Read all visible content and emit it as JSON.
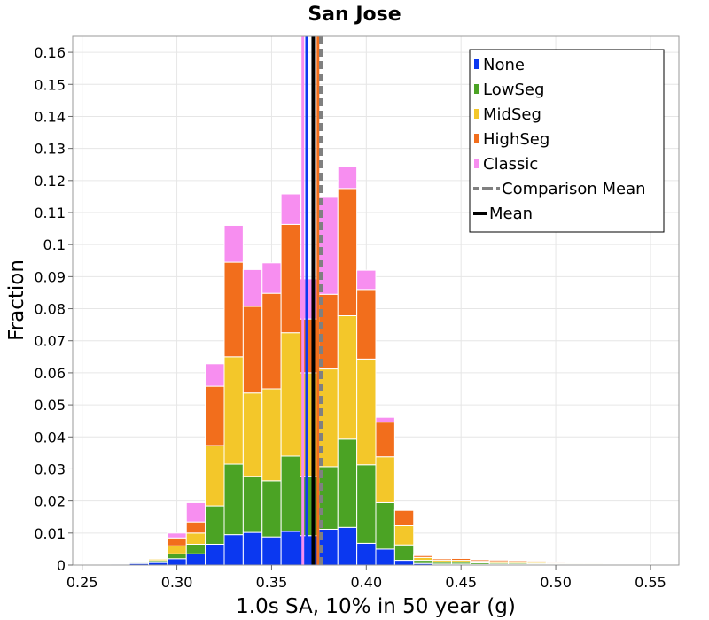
{
  "chart_data": {
    "type": "bar",
    "stacked": true,
    "title": "San Jose",
    "xlabel": "1.0s SA, 10% in 50 year (g)",
    "ylabel": "Fraction",
    "xlim": [
      0.245,
      0.565
    ],
    "ylim": [
      0,
      0.165
    ],
    "bin_width": 0.01,
    "grid": true,
    "legend_position": "top-right",
    "x_ticks": [
      "0.25",
      "0.30",
      "0.35",
      "0.40",
      "0.45",
      "0.50",
      "0.55"
    ],
    "x_tick_values": [
      0.25,
      0.3,
      0.35,
      0.4,
      0.45,
      0.5,
      0.55
    ],
    "y_ticks": [
      "0",
      "0.01",
      "0.02",
      "0.03",
      "0.04",
      "0.05",
      "0.06",
      "0.07",
      "0.08",
      "0.09",
      "0.1",
      "0.11",
      "0.12",
      "0.13",
      "0.14",
      "0.15",
      "0.16"
    ],
    "y_tick_values": [
      0,
      0.01,
      0.02,
      0.03,
      0.04,
      0.05,
      0.06,
      0.07,
      0.08,
      0.09,
      0.1,
      0.11,
      0.12,
      0.13,
      0.14,
      0.15,
      0.16
    ],
    "bin_centers": [
      0.26,
      0.27,
      0.28,
      0.29,
      0.3,
      0.31,
      0.32,
      0.33,
      0.34,
      0.35,
      0.36,
      0.37,
      0.38,
      0.39,
      0.4,
      0.41,
      0.42,
      0.43,
      0.44,
      0.45,
      0.46,
      0.47,
      0.48,
      0.49,
      0.5,
      0.51,
      0.52,
      0.53,
      0.54,
      0.55
    ],
    "series": [
      {
        "name": "None",
        "color": "#0b38f0",
        "values": [
          0.0002,
          0.0003,
          0.0005,
          0.0008,
          0.002,
          0.0035,
          0.0065,
          0.0095,
          0.0102,
          0.0088,
          0.0105,
          0.0092,
          0.0112,
          0.0118,
          0.0068,
          0.005,
          0.0015,
          0.0005,
          0.0003,
          0.0003,
          0.0002,
          0.0002,
          0.0002,
          0.0002,
          0.0001,
          0.0001,
          0.0001,
          0.0001,
          0.0001,
          0.0001
        ]
      },
      {
        "name": "LowSeg",
        "color": "#4ba324",
        "values": [
          0.0001,
          0.0002,
          0.0003,
          0.0006,
          0.0015,
          0.003,
          0.012,
          0.022,
          0.0175,
          0.0175,
          0.0235,
          0.0185,
          0.0195,
          0.0275,
          0.0245,
          0.0145,
          0.0048,
          0.001,
          0.0006,
          0.0006,
          0.0005,
          0.0004,
          0.0004,
          0.0003,
          0.0002,
          0.0002,
          0.0002,
          0.0001,
          0.0001,
          0.0001
        ]
      },
      {
        "name": "MidSeg",
        "color": "#f3c72a",
        "values": [
          0.0001,
          0.0001,
          0.0002,
          0.0005,
          0.0025,
          0.0035,
          0.0188,
          0.0335,
          0.026,
          0.0287,
          0.0385,
          0.0323,
          0.0305,
          0.0385,
          0.033,
          0.0143,
          0.006,
          0.0009,
          0.0006,
          0.0006,
          0.0005,
          0.0005,
          0.0004,
          0.0004,
          0.0003,
          0.0003,
          0.0003,
          0.0002,
          0.0002,
          0.0001
        ]
      },
      {
        "name": "HighSeg",
        "color": "#f26e1c",
        "values": [
          0.0,
          0.0001,
          0.0,
          0.0,
          0.0025,
          0.0035,
          0.0185,
          0.0295,
          0.027,
          0.0298,
          0.0338,
          0.0168,
          0.0233,
          0.0397,
          0.0217,
          0.0108,
          0.0048,
          0.0006,
          0.0005,
          0.0006,
          0.0005,
          0.0005,
          0.0004,
          0.0004,
          0.0003,
          0.0002,
          0.0002,
          0.0002,
          0.0001,
          0.0001
        ]
      },
      {
        "name": "Classic",
        "color": "#f78ef0",
        "values": [
          0.0001,
          0.0001,
          0.0001,
          0.0001,
          0.0015,
          0.006,
          0.007,
          0.0115,
          0.0115,
          0.0095,
          0.0095,
          0.0125,
          0.0305,
          0.007,
          0.006,
          0.0015,
          0.0002,
          0.0001,
          0.0001,
          0.0001,
          0.0001,
          0.0001,
          0.0001,
          0.0001,
          0.0001,
          0.0001,
          0.0001,
          0.0001,
          0.0001,
          0.0001
        ]
      }
    ],
    "vertical_lines": [
      {
        "name": "Comparison Mean",
        "x": 0.376,
        "color": "#808080",
        "style": "dashed"
      },
      {
        "name": "Mean",
        "x": 0.372,
        "color": "#000000",
        "style": "solid"
      }
    ],
    "extra_lines": [
      {
        "x": 0.3685,
        "color": "#0b38f0"
      },
      {
        "x": 0.3745,
        "color": "#f26e1c"
      },
      {
        "x": 0.3665,
        "color": "#f78ef0"
      }
    ]
  }
}
